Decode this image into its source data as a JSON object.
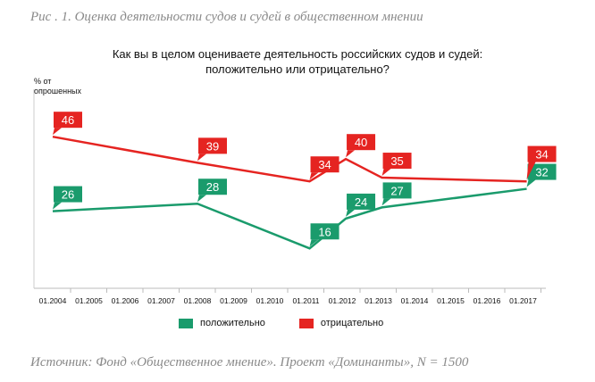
{
  "caption": "Рис . 1. Оценка деятельности судов и судей в общественном мнении",
  "source": "Источник: Фонд «Общественное мнение». Проект «Доминанты», N = 1500",
  "chart_data": {
    "type": "line",
    "title_line1": "Как вы в целом оцениваете деятельность российских судов и судей:",
    "title_line2": "положительно или отрицательно?",
    "ylabel_line1": "% от",
    "ylabel_line2": "опрошенных",
    "xticks": [
      "01.2004",
      "01.2005",
      "01.2006",
      "01.2007",
      "01.2008",
      "01.2009",
      "01.2010",
      "01.2011",
      "01.2012",
      "01.2013",
      "01.2014",
      "01.2015",
      "01.2016",
      "01.2017"
    ],
    "x": [
      2004.0,
      2008.0,
      2011.1,
      2012.1,
      2013.1,
      2017.1
    ],
    "ylim": [
      5,
      52
    ],
    "grid": false,
    "legend_position": "bottom",
    "series": [
      {
        "name": "положительно",
        "color": "#1a9b6c",
        "values": [
          26,
          28,
          16,
          24,
          27,
          32
        ]
      },
      {
        "name": "отрицательно",
        "color": "#e52421",
        "values": [
          46,
          39,
          34,
          40,
          35,
          34
        ]
      }
    ]
  }
}
